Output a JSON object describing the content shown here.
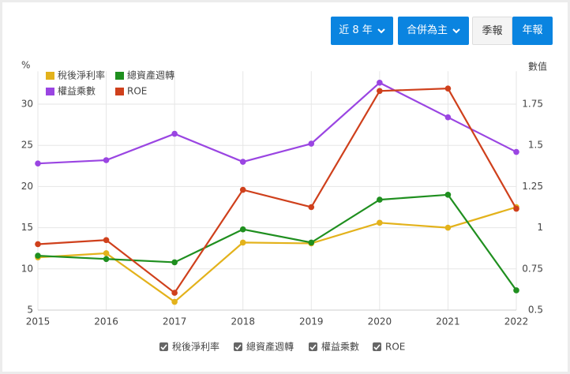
{
  "controls": {
    "period": "近 8 年",
    "consolidation": "合併為主",
    "quarterly": "季報",
    "annual": "年報"
  },
  "chart_data": {
    "type": "line",
    "y_label": "%",
    "y2_label": "數值",
    "categories": [
      "2015",
      "2016",
      "2017",
      "2018",
      "2019",
      "2020",
      "2021",
      "2022"
    ],
    "ylim": [
      5,
      34
    ],
    "yticks": [
      5,
      10,
      15,
      20,
      25,
      30
    ],
    "y2lim": [
      0.5,
      1.95
    ],
    "y2ticks": [
      0.5,
      0.75,
      1,
      1.25,
      1.5,
      1.75
    ],
    "grid": true,
    "legend": "top-left",
    "series": [
      {
        "name": "稅後淨利率",
        "color": "#e3b21b",
        "values": [
          11.4,
          11.9,
          6.0,
          13.2,
          13.1,
          15.6,
          15.0,
          17.5
        ]
      },
      {
        "name": "總資產週轉",
        "color": "#1f8f1f",
        "axis": "y2",
        "values": [
          0.83,
          0.81,
          0.79,
          0.99,
          0.91,
          1.17,
          1.2,
          0.62
        ]
      },
      {
        "name": "權益乘數",
        "color": "#9a45e2",
        "axis": "y2",
        "values": [
          1.39,
          1.41,
          1.57,
          1.4,
          1.51,
          1.88,
          1.67,
          1.46
        ]
      },
      {
        "name": "ROE",
        "color": "#cf401c",
        "values": [
          13.0,
          13.5,
          7.1,
          19.6,
          17.5,
          31.6,
          31.9,
          17.3
        ]
      }
    ]
  }
}
